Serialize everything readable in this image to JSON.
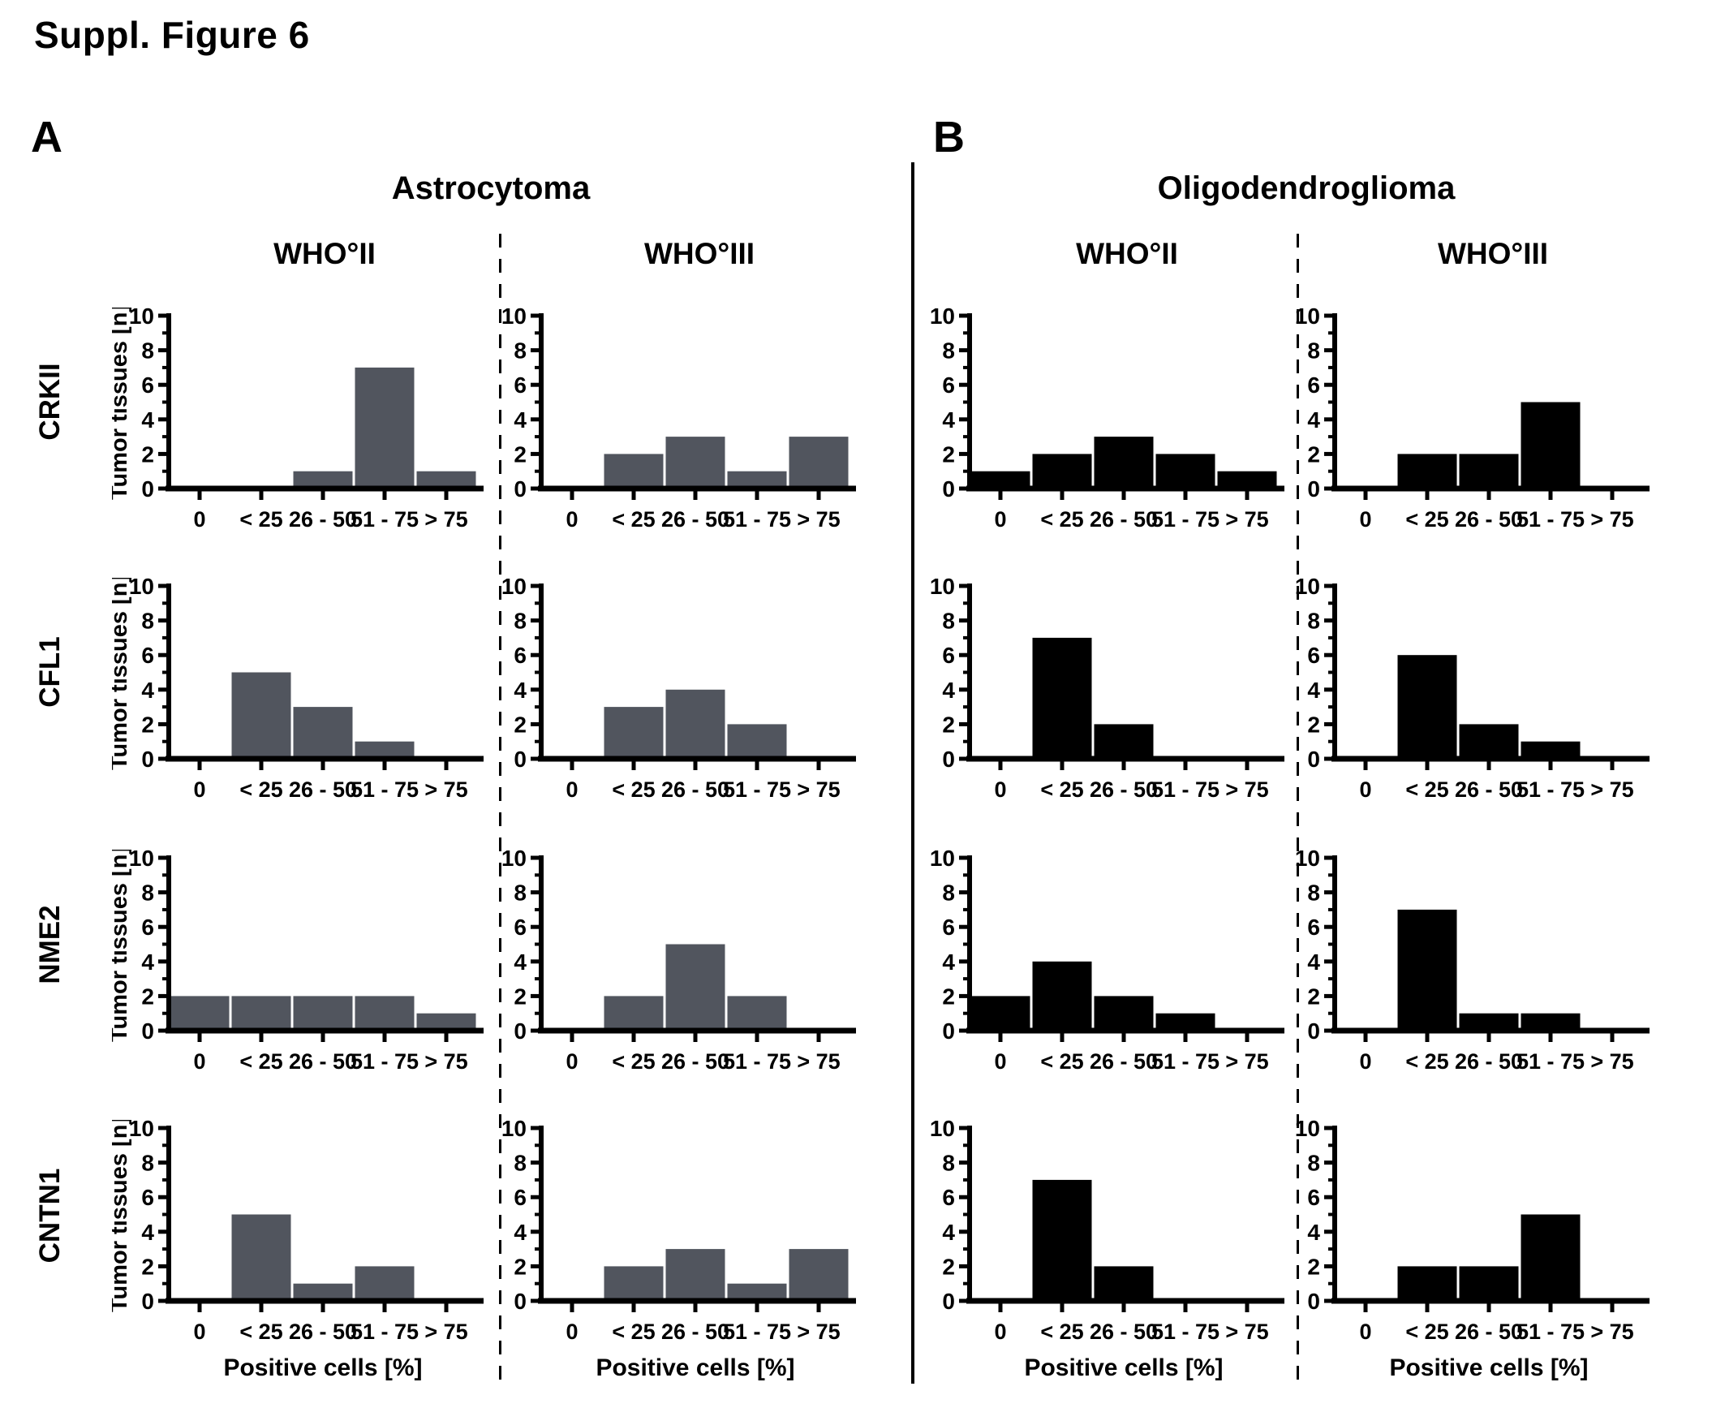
{
  "figure": {
    "title": "Suppl. Figure 6"
  },
  "panels": [
    {
      "label": "A",
      "title": "Astrocytoma",
      "columns": [
        "WHO°II",
        "WHO°III"
      ],
      "bar_color": "#51555e"
    },
    {
      "label": "B",
      "title": "Oligodendroglioma",
      "columns": [
        "WHO°II",
        "WHO°III"
      ],
      "bar_color": "#000000"
    }
  ],
  "rows": [
    "CRKII",
    "CFL1",
    "NME2",
    "CNTN1"
  ],
  "chart_data": {
    "type": "bar",
    "categories": [
      "0",
      "< 25",
      "26 - 50",
      "51 - 75",
      "> 75"
    ],
    "xlabel": "Positive cells [%]",
    "ylabel": "Tumor tissues [n]",
    "ylim": [
      0,
      10
    ],
    "y_ticks": [
      0,
      2,
      4,
      6,
      8,
      10
    ],
    "y_minor_ticks": [
      1,
      3,
      5,
      7,
      9
    ],
    "grid": false,
    "legend": "none",
    "charts": [
      {
        "row": "CRKII",
        "panel": "Astrocytoma",
        "grade": "WHO°II",
        "values": [
          0,
          0,
          1,
          7,
          1
        ]
      },
      {
        "row": "CRKII",
        "panel": "Astrocytoma",
        "grade": "WHO°III",
        "values": [
          0,
          2,
          3,
          1,
          3
        ]
      },
      {
        "row": "CRKII",
        "panel": "Oligodendroglioma",
        "grade": "WHO°II",
        "values": [
          1,
          2,
          3,
          2,
          1
        ]
      },
      {
        "row": "CRKII",
        "panel": "Oligodendroglioma",
        "grade": "WHO°III",
        "values": [
          0,
          2,
          2,
          5,
          0
        ]
      },
      {
        "row": "CFL1",
        "panel": "Astrocytoma",
        "grade": "WHO°II",
        "values": [
          0,
          5,
          3,
          1,
          0
        ]
      },
      {
        "row": "CFL1",
        "panel": "Astrocytoma",
        "grade": "WHO°III",
        "values": [
          0,
          3,
          4,
          2,
          0
        ]
      },
      {
        "row": "CFL1",
        "panel": "Oligodendroglioma",
        "grade": "WHO°II",
        "values": [
          0,
          7,
          2,
          0,
          0
        ]
      },
      {
        "row": "CFL1",
        "panel": "Oligodendroglioma",
        "grade": "WHO°III",
        "values": [
          0,
          6,
          2,
          1,
          0
        ]
      },
      {
        "row": "NME2",
        "panel": "Astrocytoma",
        "grade": "WHO°II",
        "values": [
          2,
          2,
          2,
          2,
          1
        ]
      },
      {
        "row": "NME2",
        "panel": "Astrocytoma",
        "grade": "WHO°III",
        "values": [
          0,
          2,
          5,
          2,
          0
        ]
      },
      {
        "row": "NME2",
        "panel": "Oligodendroglioma",
        "grade": "WHO°II",
        "values": [
          2,
          4,
          2,
          1,
          0
        ]
      },
      {
        "row": "NME2",
        "panel": "Oligodendroglioma",
        "grade": "WHO°III",
        "values": [
          0,
          7,
          1,
          1,
          0
        ]
      },
      {
        "row": "CNTN1",
        "panel": "Astrocytoma",
        "grade": "WHO°II",
        "values": [
          0,
          5,
          1,
          2,
          0
        ]
      },
      {
        "row": "CNTN1",
        "panel": "Astrocytoma",
        "grade": "WHO°III",
        "values": [
          0,
          2,
          3,
          1,
          3
        ]
      },
      {
        "row": "CNTN1",
        "panel": "Oligodendroglioma",
        "grade": "WHO°II",
        "values": [
          0,
          7,
          2,
          0,
          0
        ]
      },
      {
        "row": "CNTN1",
        "panel": "Oligodendroglioma",
        "grade": "WHO°III",
        "values": [
          0,
          2,
          2,
          5,
          0
        ]
      }
    ]
  }
}
